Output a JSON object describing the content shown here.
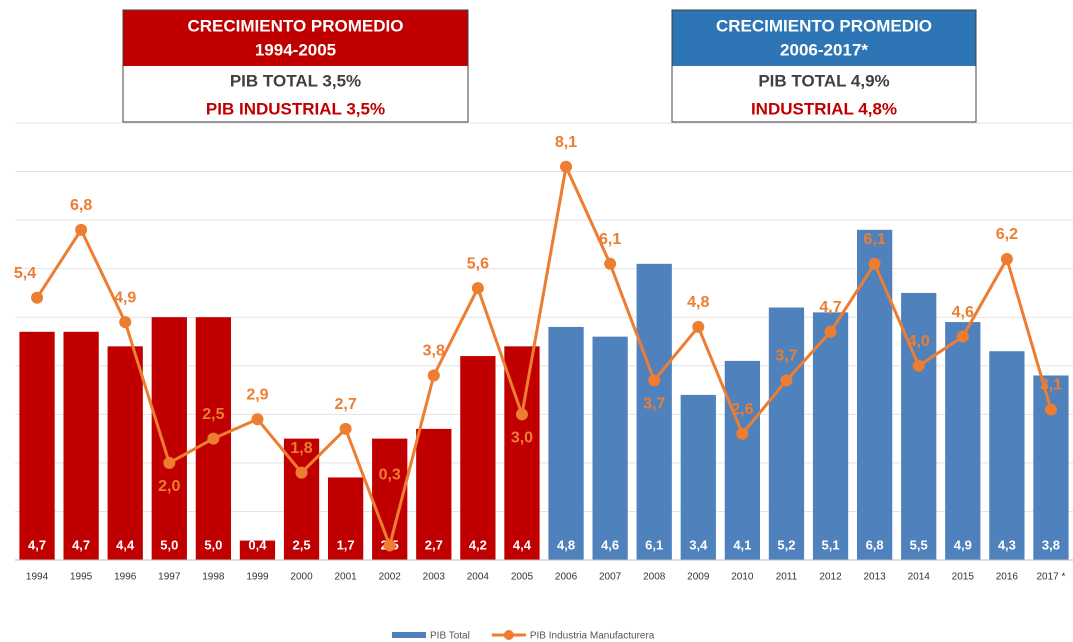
{
  "chart_data": {
    "type": "bar-line",
    "categories": [
      "1994",
      "1995",
      "1996",
      "1997",
      "1998",
      "1999",
      "2000",
      "2001",
      "2002",
      "2003",
      "2004",
      "2005",
      "2006",
      "2007",
      "2008",
      "2009",
      "2010",
      "2011",
      "2012",
      "2013",
      "2014",
      "2015",
      "2016",
      "2017 *"
    ],
    "series": [
      {
        "name": "PIB Total",
        "color": "#4f81bd",
        "kind": "bar",
        "colors": [
          "#c00000",
          "#c00000",
          "#c00000",
          "#c00000",
          "#c00000",
          "#c00000",
          "#c00000",
          "#c00000",
          "#c00000",
          "#c00000",
          "#c00000",
          "#c00000",
          "#4f81bd",
          "#4f81bd",
          "#4f81bd",
          "#4f81bd",
          "#4f81bd",
          "#4f81bd",
          "#4f81bd",
          "#4f81bd",
          "#4f81bd",
          "#4f81bd",
          "#4f81bd",
          "#4f81bd"
        ],
        "values": [
          4.7,
          4.7,
          4.4,
          5.0,
          5.0,
          0.4,
          2.5,
          1.7,
          2.5,
          2.7,
          4.2,
          4.4,
          4.8,
          4.6,
          6.1,
          3.4,
          4.1,
          5.2,
          5.1,
          6.8,
          5.5,
          4.9,
          4.3,
          3.8
        ],
        "value_labels": [
          "4,7",
          "4,7",
          "4,4",
          "5,0",
          "5,0",
          "0,4",
          "2,5",
          "1,7",
          "2,5",
          "2,7",
          "4,2",
          "4,4",
          "4,8",
          "4,6",
          "6,1",
          "3,4",
          "4,1",
          "5,2",
          "5,1",
          "6,8",
          "5,5",
          "4,9",
          "4,3",
          "3,8"
        ]
      },
      {
        "name": "PIB Industria Manufacturera",
        "color": "#ed7d31",
        "kind": "line",
        "values": [
          5.4,
          6.8,
          4.9,
          2.0,
          2.5,
          2.9,
          1.8,
          2.7,
          0.3,
          3.8,
          5.6,
          3.0,
          8.1,
          6.1,
          3.7,
          4.8,
          2.6,
          3.7,
          4.7,
          6.1,
          4.0,
          4.6,
          6.2,
          3.1
        ],
        "value_labels": [
          "5,4",
          "6,8",
          "4,9",
          "2,0",
          "2,5",
          "2,9",
          "1,8",
          "2,7",
          "0,3",
          "3,8",
          "5,6",
          "3,0",
          "8,1",
          "6,1",
          "3,7",
          "4,8",
          "2,6",
          "3,7",
          "4,7",
          "6,1",
          "4,0",
          "4,6",
          "6,2",
          "3,1"
        ]
      }
    ],
    "ylim": [
      0,
      9
    ],
    "yticks": [
      0,
      1,
      2,
      3,
      4,
      5,
      6,
      7,
      8,
      9
    ],
    "grid": true,
    "legend": "bottom",
    "annotations": [
      {
        "color": "#c00000",
        "title": [
          "CRECIMIENTO PROMEDIO",
          "1994-2005"
        ],
        "lines": [
          "PIB TOTAL 3,5%",
          "PIB INDUSTRIAL 3,5%"
        ]
      },
      {
        "color": "#2e75b6",
        "title": [
          "CRECIMIENTO PROMEDIO",
          "2006-2017*"
        ],
        "lines": [
          "PIB TOTAL 4,9%",
          "INDUSTRIAL 4,8%"
        ]
      }
    ]
  }
}
